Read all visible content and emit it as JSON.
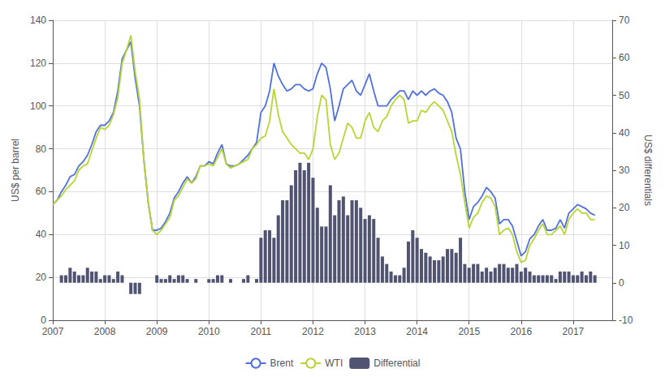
{
  "chart_data": {
    "type": "line",
    "x": [
      2007,
      2007.083333,
      2007.166667,
      2007.25,
      2007.333333,
      2007.416667,
      2007.5,
      2007.583333,
      2007.666667,
      2007.75,
      2007.833333,
      2007.916667,
      2008,
      2008.083333,
      2008.166667,
      2008.25,
      2008.333333,
      2008.416667,
      2008.5,
      2008.583333,
      2008.666667,
      2008.75,
      2008.833333,
      2008.916667,
      2009,
      2009.083333,
      2009.166667,
      2009.25,
      2009.333333,
      2009.416667,
      2009.5,
      2009.583333,
      2009.666667,
      2009.75,
      2009.833333,
      2009.916667,
      2010,
      2010.083333,
      2010.166667,
      2010.25,
      2010.333333,
      2010.416667,
      2010.5,
      2010.583333,
      2010.666667,
      2010.75,
      2010.833333,
      2010.916667,
      2011,
      2011.083333,
      2011.166667,
      2011.25,
      2011.333333,
      2011.416667,
      2011.5,
      2011.583333,
      2011.666667,
      2011.75,
      2011.833333,
      2011.916667,
      2012,
      2012.083333,
      2012.166667,
      2012.25,
      2012.333333,
      2012.416667,
      2012.5,
      2012.583333,
      2012.666667,
      2012.75,
      2012.833333,
      2012.916667,
      2013,
      2013.083333,
      2013.166667,
      2013.25,
      2013.333333,
      2013.416667,
      2013.5,
      2013.583333,
      2013.666667,
      2013.75,
      2013.833333,
      2013.916667,
      2014,
      2014.083333,
      2014.166667,
      2014.25,
      2014.333333,
      2014.416667,
      2014.5,
      2014.583333,
      2014.666667,
      2014.75,
      2014.833333,
      2014.916667,
      2015,
      2015.083333,
      2015.166667,
      2015.25,
      2015.333333,
      2015.416667,
      2015.5,
      2015.583333,
      2015.666667,
      2015.75,
      2015.833333,
      2015.916667,
      2016,
      2016.083333,
      2016.166667,
      2016.25,
      2016.333333,
      2016.416667,
      2016.5,
      2016.583333,
      2016.666667,
      2016.75,
      2016.833333,
      2016.916667,
      2017,
      2017.083333,
      2017.166667,
      2017.25,
      2017.333333,
      2017.416667
    ],
    "xlim": [
      2007,
      2017.75
    ],
    "xticks": [
      2007,
      2008,
      2009,
      2010,
      2011,
      2012,
      2013,
      2014,
      2015,
      2016,
      2017
    ],
    "ylabel": "US$ per barrel",
    "ylim": [
      0,
      140
    ],
    "yticks": [
      0,
      20,
      40,
      60,
      80,
      100,
      120,
      140
    ],
    "y2label": "US$ differentials",
    "y2lim": [
      -10,
      70
    ],
    "y2ticks": [
      -10,
      0,
      10,
      20,
      30,
      40,
      50,
      60,
      70
    ],
    "grid": true,
    "legend": "bottom",
    "series": [
      {
        "name": "Brent",
        "type": "line",
        "values": [
          54,
          56,
          60,
          63,
          67,
          68,
          72,
          74,
          77,
          82,
          88,
          91,
          91,
          93,
          97,
          107,
          122,
          126,
          130,
          113,
          100,
          75,
          55,
          42,
          42,
          43,
          46,
          50,
          57,
          60,
          64,
          67,
          64,
          67,
          72,
          72,
          74,
          73,
          78,
          82,
          73,
          72,
          72,
          73,
          75,
          77,
          80,
          83,
          97,
          100,
          107,
          120,
          114,
          110,
          107,
          108,
          110,
          110,
          108,
          107,
          108,
          115,
          120,
          118,
          108,
          93,
          100,
          108,
          110,
          112,
          107,
          105,
          110,
          115,
          107,
          100,
          100,
          100,
          103,
          105,
          107,
          107,
          103,
          107,
          105,
          107,
          105,
          107,
          108,
          106,
          105,
          102,
          97,
          85,
          80,
          60,
          47,
          53,
          55,
          58,
          62,
          60,
          57,
          45,
          47,
          47,
          44,
          37,
          30,
          32,
          38,
          40,
          44,
          47,
          42,
          42,
          43,
          47,
          43,
          50,
          52,
          54,
          53,
          52,
          50,
          49
        ]
      },
      {
        "name": "WTI",
        "type": "line",
        "values": [
          54,
          56,
          58,
          61,
          63,
          65,
          70,
          72,
          73,
          79,
          85,
          90,
          89,
          91,
          96,
          104,
          120,
          126,
          133,
          116,
          103,
          75,
          55,
          42,
          40,
          42,
          45,
          48,
          56,
          58,
          62,
          66,
          64,
          66,
          72,
          72,
          73,
          72,
          76,
          80,
          73,
          71,
          72,
          73,
          74,
          75,
          80,
          82,
          85,
          86,
          93,
          108,
          96,
          88,
          85,
          82,
          80,
          78,
          78,
          75,
          80,
          95,
          105,
          103,
          82,
          75,
          78,
          85,
          92,
          90,
          85,
          85,
          93,
          97,
          90,
          88,
          93,
          95,
          100,
          103,
          105,
          103,
          92,
          93,
          93,
          98,
          97,
          100,
          102,
          100,
          98,
          93,
          88,
          77,
          68,
          55,
          43,
          48,
          50,
          55,
          58,
          57,
          53,
          40,
          42,
          43,
          40,
          32,
          27,
          28,
          35,
          38,
          42,
          45,
          40,
          40,
          42,
          44,
          40,
          47,
          50,
          52,
          50,
          50,
          47,
          47
        ]
      },
      {
        "name": "Differential",
        "type": "bar",
        "axis": "y2",
        "values": [
          0,
          0,
          2,
          2,
          4,
          3,
          2,
          2,
          4,
          3,
          3,
          1,
          2,
          2,
          1,
          3,
          2,
          0,
          -3,
          -3,
          -3,
          0,
          0,
          0,
          2,
          1,
          1,
          2,
          1,
          2,
          2,
          1,
          0,
          1,
          0,
          0,
          1,
          1,
          2,
          2,
          0,
          1,
          0,
          0,
          1,
          2,
          0,
          1,
          12,
          14,
          14,
          12,
          18,
          22,
          22,
          26,
          30,
          32,
          30,
          32,
          28,
          20,
          15,
          15,
          26,
          18,
          22,
          23,
          18,
          22,
          22,
          20,
          17,
          18,
          17,
          12,
          7,
          5,
          3,
          2,
          2,
          4,
          11,
          14,
          12,
          9,
          8,
          7,
          6,
          6,
          7,
          9,
          9,
          8,
          12,
          5,
          4,
          5,
          5,
          3,
          4,
          3,
          4,
          5,
          5,
          4,
          4,
          5,
          3,
          4,
          3,
          2,
          2,
          2,
          2,
          2,
          1,
          3,
          3,
          3,
          2,
          2,
          3,
          2,
          3,
          2
        ]
      }
    ]
  }
}
